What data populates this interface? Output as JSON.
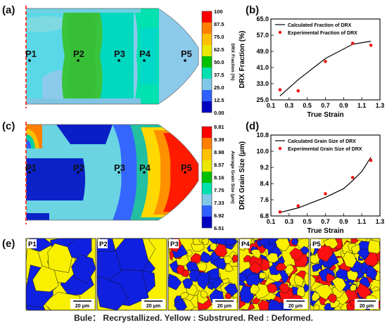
{
  "panels": {
    "a": {
      "label": "(a)",
      "cbar_title": "DRX Fraction  (%)",
      "ticks": [
        "100",
        "87.5",
        "75.0",
        "62.5",
        "50.0",
        "37.5",
        "25.0",
        "12.5",
        "0.00"
      ],
      "colors": [
        "#ff0000",
        "#ff8000",
        "#ffc000",
        "#e8e800",
        "#00c000",
        "#00e0b0",
        "#80c8e8",
        "#3060ff",
        "#0000c0"
      ]
    },
    "c": {
      "label": "(c)",
      "cbar_title": "Average Grain Size  (μm)",
      "ticks": [
        "9.81",
        "9.39",
        "8.98",
        "8.57",
        "8.16",
        "7.75",
        "7.33",
        "6.92",
        "6.51"
      ],
      "colors": [
        "#ff0000",
        "#ff8000",
        "#ffc000",
        "#e8e800",
        "#00c000",
        "#00e0b0",
        "#80c8e8",
        "#3060ff",
        "#0000c0"
      ]
    },
    "b": {
      "label": "(b)"
    },
    "d": {
      "label": "(d)"
    },
    "e": {
      "label": "(e)",
      "scale": "20 μm"
    }
  },
  "points": [
    "P1",
    "P2",
    "P3",
    "P4",
    "P5"
  ],
  "caption": "Bule： Recrystallized. Yellow : Substrured. Red : Deformed.",
  "chart_data": [
    {
      "type": "line",
      "panel": "b",
      "xlabel": "True Strain",
      "ylabel": "DRX Fraction (%)",
      "xlim": [
        0.1,
        1.3
      ],
      "ylim": [
        25.0,
        65.0
      ],
      "xticks": [
        "0.1",
        "0.3",
        "0.5",
        "0.7",
        "0.9",
        "1.1",
        "1.3"
      ],
      "yticks": [
        "25.0",
        "33.0",
        "41.0",
        "49.0",
        "57.0",
        "65.0"
      ],
      "legend_position": "top-left",
      "series": [
        {
          "name": "Calculated Fraction of DRX",
          "kind": "line",
          "x": [
            0.2,
            0.4,
            0.7,
            1.0,
            1.2
          ],
          "y": [
            27.0,
            35.0,
            45.5,
            52.5,
            54.0
          ]
        },
        {
          "name": "Experimental Fraction of DRX",
          "kind": "scatter",
          "x": [
            0.2,
            0.4,
            0.7,
            1.0,
            1.2
          ],
          "y": [
            30.0,
            29.5,
            44.0,
            53.0,
            52.0
          ]
        }
      ]
    },
    {
      "type": "line",
      "panel": "d",
      "xlabel": "True Strain",
      "ylabel": "DRX Grain Size (μm)",
      "xlim": [
        0.1,
        1.3
      ],
      "ylim": [
        6.8,
        10.8
      ],
      "xticks": [
        "0.1",
        "0.3",
        "0.5",
        "0.7",
        "0.9",
        "1.1",
        "1.3"
      ],
      "yticks": [
        "6.8",
        "7.6",
        "8.4",
        "9.2",
        "10.0",
        "10.8"
      ],
      "legend_position": "top-left",
      "series": [
        {
          "name": "Calculated Grain Size of DRX",
          "kind": "line",
          "x": [
            0.2,
            0.4,
            0.7,
            0.9,
            1.0,
            1.1,
            1.2
          ],
          "y": [
            6.97,
            7.2,
            7.72,
            8.15,
            8.55,
            9.0,
            9.7
          ]
        },
        {
          "name": "Experimental Grain Size of DRX",
          "kind": "scatter",
          "x": [
            0.2,
            0.4,
            0.7,
            1.0,
            1.2
          ],
          "y": [
            7.0,
            7.3,
            7.9,
            8.7,
            9.55
          ]
        }
      ]
    }
  ]
}
